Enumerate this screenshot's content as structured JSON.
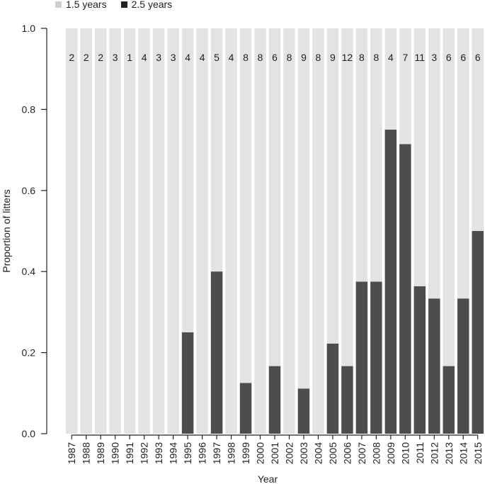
{
  "chart_data": {
    "type": "bar",
    "stacked": true,
    "xlabel": "Year",
    "ylabel": "Proportion of litters",
    "ylim": [
      0,
      1
    ],
    "yticks": [
      "0.0",
      "0.2",
      "0.4",
      "0.6",
      "0.8",
      "1.0"
    ],
    "legend_position": "top-left",
    "categories": [
      "1987",
      "1988",
      "1989",
      "1990",
      "1991",
      "1992",
      "1993",
      "1994",
      "1995",
      "1996",
      "1997",
      "1998",
      "1999",
      "2000",
      "2001",
      "2002",
      "2003",
      "2004",
      "2005",
      "2006",
      "2007",
      "2008",
      "2009",
      "2010",
      "2011",
      "2012",
      "2013",
      "2014",
      "2015"
    ],
    "counts": [
      "2",
      "2",
      "2",
      "3",
      "1",
      "4",
      "3",
      "3",
      "4",
      "4",
      "5",
      "4",
      "8",
      "8",
      "6",
      "8",
      "9",
      "8",
      "9",
      "12",
      "8",
      "8",
      "4",
      "7",
      "11",
      "3",
      "6",
      "6",
      "6"
    ],
    "series": [
      {
        "name": "1.5 years",
        "color": "#e3e3e3"
      },
      {
        "name": "2.5 years",
        "color": "#4d4d4d",
        "values": [
          0,
          0,
          0,
          0,
          0,
          0,
          0,
          0,
          0.25,
          0,
          0.4,
          0,
          0.125,
          0,
          0.1667,
          0,
          0.1111,
          0,
          0.2222,
          0.1667,
          0.375,
          0.375,
          0.75,
          0.7143,
          0.3636,
          0.3333,
          0.1667,
          0.3333,
          0.5
        ]
      }
    ]
  }
}
